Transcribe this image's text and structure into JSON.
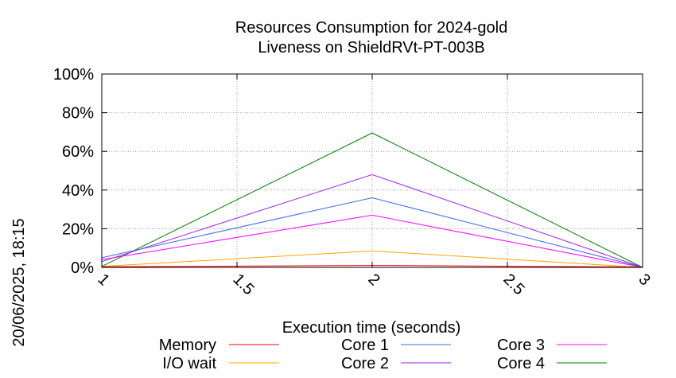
{
  "chart_data": {
    "type": "line",
    "title": "Resources Consumption for 2024-gold",
    "subtitle": "Liveness on ShieldRVt-PT-003B",
    "xlabel": "Execution time (seconds)",
    "ylabel": "",
    "side_label": "20/06/2025, 18:15",
    "xlim": [
      1,
      3
    ],
    "ylim": [
      0,
      100
    ],
    "x_ticks": [
      "1",
      "1.5",
      "2",
      "2.5",
      "3"
    ],
    "x_tick_values": [
      1,
      1.5,
      2,
      2.5,
      3
    ],
    "y_ticks": [
      "0%",
      "20%",
      "40%",
      "60%",
      "80%",
      "100%"
    ],
    "y_tick_values": [
      0,
      20,
      40,
      60,
      80,
      100
    ],
    "grid": true,
    "legend_position": "bottom",
    "x": [
      1,
      2,
      3
    ],
    "series": [
      {
        "name": "Memory",
        "color": "#ff0000",
        "values": [
          0.3,
          1.0,
          0.2
        ]
      },
      {
        "name": "I/O wait",
        "color": "#ffa500",
        "values": [
          0.5,
          8.5,
          0.0
        ]
      },
      {
        "name": "Core 1",
        "color": "#4169e1",
        "values": [
          5.0,
          36.0,
          0.0
        ]
      },
      {
        "name": "Core 2",
        "color": "#a020f0",
        "values": [
          3.0,
          48.0,
          0.0
        ]
      },
      {
        "name": "Core 3",
        "color": "#ff00ff",
        "values": [
          4.0,
          27.0,
          0.0
        ]
      },
      {
        "name": "Core 4",
        "color": "#008000",
        "values": [
          0.5,
          69.5,
          0.0
        ]
      }
    ]
  }
}
